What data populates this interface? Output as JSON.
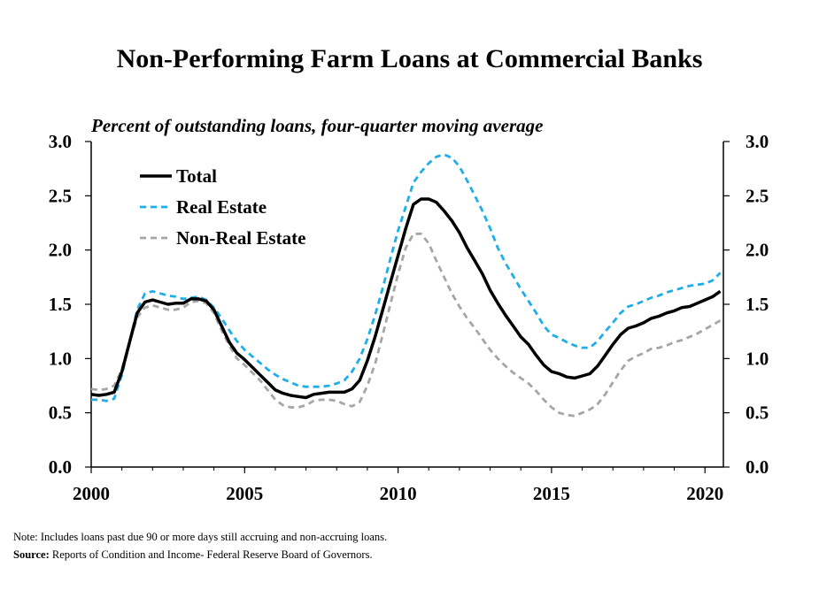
{
  "chart_data": {
    "type": "line",
    "title": "Non-Performing Farm Loans at Commercial Banks",
    "subtitle": "Percent of outstanding loans, four-quarter moving average",
    "xlabel": "",
    "ylabel": "",
    "xlim": [
      2000,
      2020.6
    ],
    "ylim": [
      0,
      3
    ],
    "x_ticks": [
      2000,
      2005,
      2010,
      2015,
      2020
    ],
    "y_ticks": [
      "0.0",
      "0.5",
      "1.0",
      "1.5",
      "2.0",
      "2.5",
      "3.0"
    ],
    "grid": false,
    "legend_position": "top-left",
    "series": [
      {
        "name": "Total",
        "color": "#000000",
        "style": "solid",
        "x": [
          2000.0,
          2000.25,
          2000.5,
          2000.75,
          2001.0,
          2001.25,
          2001.5,
          2001.75,
          2002.0,
          2002.25,
          2002.5,
          2002.75,
          2003.0,
          2003.25,
          2003.5,
          2003.75,
          2004.0,
          2004.25,
          2004.5,
          2004.75,
          2005.0,
          2005.25,
          2005.5,
          2005.75,
          2006.0,
          2006.25,
          2006.5,
          2006.75,
          2007.0,
          2007.25,
          2007.5,
          2007.75,
          2008.0,
          2008.25,
          2008.5,
          2008.75,
          2009.0,
          2009.25,
          2009.5,
          2009.75,
          2010.0,
          2010.25,
          2010.5,
          2010.75,
          2011.0,
          2011.25,
          2011.5,
          2011.75,
          2012.0,
          2012.25,
          2012.5,
          2012.75,
          2013.0,
          2013.25,
          2013.5,
          2013.75,
          2014.0,
          2014.25,
          2014.5,
          2014.75,
          2015.0,
          2015.25,
          2015.5,
          2015.75,
          2016.0,
          2016.25,
          2016.5,
          2016.75,
          2017.0,
          2017.25,
          2017.5,
          2017.75,
          2018.0,
          2018.25,
          2018.5,
          2018.75,
          2019.0,
          2019.25,
          2019.5,
          2019.75,
          2020.0,
          2020.25,
          2020.5
        ],
        "values": [
          0.67,
          0.66,
          0.67,
          0.69,
          0.88,
          1.15,
          1.42,
          1.52,
          1.54,
          1.52,
          1.5,
          1.51,
          1.51,
          1.55,
          1.55,
          1.53,
          1.45,
          1.3,
          1.15,
          1.05,
          0.99,
          0.92,
          0.85,
          0.78,
          0.71,
          0.68,
          0.66,
          0.65,
          0.64,
          0.67,
          0.68,
          0.69,
          0.69,
          0.69,
          0.72,
          0.8,
          0.98,
          1.2,
          1.45,
          1.7,
          1.95,
          2.2,
          2.42,
          2.47,
          2.47,
          2.44,
          2.36,
          2.27,
          2.16,
          2.02,
          1.9,
          1.78,
          1.63,
          1.51,
          1.4,
          1.3,
          1.2,
          1.13,
          1.03,
          0.94,
          0.88,
          0.86,
          0.83,
          0.82,
          0.84,
          0.86,
          0.93,
          1.03,
          1.13,
          1.22,
          1.28,
          1.3,
          1.33,
          1.37,
          1.39,
          1.42,
          1.44,
          1.47,
          1.48,
          1.51,
          1.54,
          1.57,
          1.62
        ]
      },
      {
        "name": "Real Estate",
        "color": "#1faee8",
        "style": "dashed",
        "x": [
          2000.0,
          2000.25,
          2000.5,
          2000.75,
          2001.0,
          2001.25,
          2001.5,
          2001.75,
          2002.0,
          2002.25,
          2002.5,
          2002.75,
          2003.0,
          2003.25,
          2003.5,
          2003.75,
          2004.0,
          2004.25,
          2004.5,
          2004.75,
          2005.0,
          2005.25,
          2005.5,
          2005.75,
          2006.0,
          2006.25,
          2006.5,
          2006.75,
          2007.0,
          2007.25,
          2007.5,
          2007.75,
          2008.0,
          2008.25,
          2008.5,
          2008.75,
          2009.0,
          2009.25,
          2009.5,
          2009.75,
          2010.0,
          2010.25,
          2010.5,
          2010.75,
          2011.0,
          2011.25,
          2011.5,
          2011.75,
          2012.0,
          2012.25,
          2012.5,
          2012.75,
          2013.0,
          2013.25,
          2013.5,
          2013.75,
          2014.0,
          2014.25,
          2014.5,
          2014.75,
          2015.0,
          2015.25,
          2015.5,
          2015.75,
          2016.0,
          2016.25,
          2016.5,
          2016.75,
          2017.0,
          2017.25,
          2017.5,
          2017.75,
          2018.0,
          2018.25,
          2018.5,
          2018.75,
          2019.0,
          2019.25,
          2019.5,
          2019.75,
          2020.0,
          2020.25,
          2020.5
        ],
        "values": [
          0.62,
          0.62,
          0.61,
          0.63,
          0.85,
          1.15,
          1.45,
          1.6,
          1.62,
          1.6,
          1.58,
          1.57,
          1.55,
          1.56,
          1.57,
          1.54,
          1.47,
          1.37,
          1.26,
          1.16,
          1.08,
          1.02,
          0.96,
          0.9,
          0.85,
          0.81,
          0.78,
          0.75,
          0.74,
          0.74,
          0.74,
          0.75,
          0.77,
          0.8,
          0.88,
          1.0,
          1.18,
          1.4,
          1.65,
          1.92,
          2.18,
          2.4,
          2.62,
          2.72,
          2.8,
          2.86,
          2.88,
          2.85,
          2.77,
          2.64,
          2.5,
          2.36,
          2.2,
          2.02,
          1.88,
          1.76,
          1.64,
          1.53,
          1.42,
          1.3,
          1.22,
          1.19,
          1.15,
          1.12,
          1.1,
          1.1,
          1.16,
          1.25,
          1.33,
          1.42,
          1.48,
          1.5,
          1.53,
          1.56,
          1.58,
          1.61,
          1.63,
          1.65,
          1.67,
          1.68,
          1.69,
          1.72,
          1.79
        ]
      },
      {
        "name": "Non-Real Estate",
        "color": "#a6a6a6",
        "style": "dashed",
        "x": [
          2000.0,
          2000.25,
          2000.5,
          2000.75,
          2001.0,
          2001.25,
          2001.5,
          2001.75,
          2002.0,
          2002.25,
          2002.5,
          2002.75,
          2003.0,
          2003.25,
          2003.5,
          2003.75,
          2004.0,
          2004.25,
          2004.5,
          2004.75,
          2005.0,
          2005.25,
          2005.5,
          2005.75,
          2006.0,
          2006.25,
          2006.5,
          2006.75,
          2007.0,
          2007.25,
          2007.5,
          2007.75,
          2008.0,
          2008.25,
          2008.5,
          2008.75,
          2009.0,
          2009.25,
          2009.5,
          2009.75,
          2010.0,
          2010.25,
          2010.5,
          2010.75,
          2011.0,
          2011.25,
          2011.5,
          2011.75,
          2012.0,
          2012.25,
          2012.5,
          2012.75,
          2013.0,
          2013.25,
          2013.5,
          2013.75,
          2014.0,
          2014.25,
          2014.5,
          2014.75,
          2015.0,
          2015.25,
          2015.5,
          2015.75,
          2016.0,
          2016.25,
          2016.5,
          2016.75,
          2017.0,
          2017.25,
          2017.5,
          2017.75,
          2018.0,
          2018.25,
          2018.5,
          2018.75,
          2019.0,
          2019.25,
          2019.5,
          2019.75,
          2020.0,
          2020.25,
          2020.5
        ],
        "values": [
          0.72,
          0.71,
          0.72,
          0.75,
          0.9,
          1.15,
          1.38,
          1.47,
          1.49,
          1.47,
          1.45,
          1.45,
          1.47,
          1.52,
          1.53,
          1.51,
          1.42,
          1.26,
          1.12,
          1.0,
          0.94,
          0.87,
          0.8,
          0.71,
          0.62,
          0.57,
          0.55,
          0.55,
          0.57,
          0.61,
          0.62,
          0.62,
          0.61,
          0.58,
          0.56,
          0.6,
          0.75,
          0.95,
          1.22,
          1.5,
          1.78,
          2.02,
          2.15,
          2.15,
          2.06,
          1.9,
          1.75,
          1.6,
          1.48,
          1.37,
          1.28,
          1.18,
          1.08,
          1.0,
          0.93,
          0.87,
          0.82,
          0.77,
          0.7,
          0.62,
          0.55,
          0.5,
          0.48,
          0.47,
          0.5,
          0.53,
          0.58,
          0.67,
          0.78,
          0.89,
          0.98,
          1.02,
          1.05,
          1.09,
          1.1,
          1.12,
          1.15,
          1.17,
          1.2,
          1.23,
          1.27,
          1.31,
          1.35
        ]
      }
    ]
  },
  "footnote": {
    "note": "Note: Includes loans past due 90 or more days still accruing and non-accruing loans.",
    "source_label": "Source:",
    "source_text": " Reports of Condition  and Income- Federal Reserve Board of Governors."
  }
}
